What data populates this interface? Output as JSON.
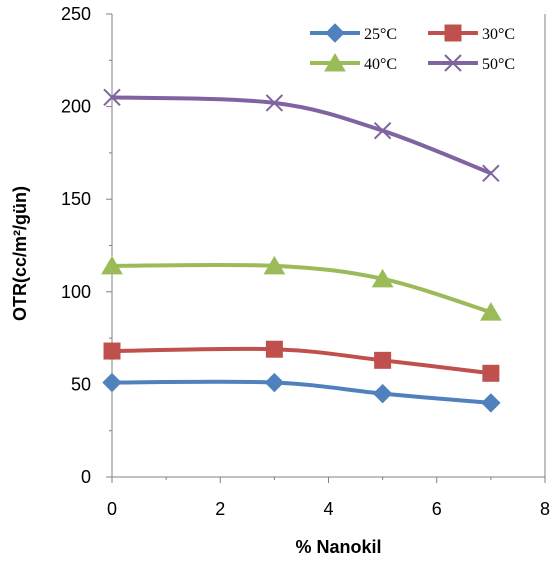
{
  "chart_data": {
    "type": "line",
    "title": "",
    "xlabel": "% Nanokil",
    "ylabel": "OTR(cc/m²/gün)",
    "xlim": [
      0,
      8
    ],
    "ylim": [
      0,
      250
    ],
    "x_ticks": [
      0,
      2,
      4,
      6,
      8
    ],
    "y_ticks": [
      0,
      50,
      100,
      150,
      200,
      250
    ],
    "grid": false,
    "legend_position": "top-right",
    "x": [
      0,
      3,
      5,
      7
    ],
    "series": [
      {
        "name": "25°C",
        "values": [
          51,
          51,
          45,
          40
        ],
        "color": "#4F81BD",
        "marker": "diamond"
      },
      {
        "name": "30°C",
        "values": [
          68,
          69,
          63,
          56
        ],
        "color": "#C0504D",
        "marker": "square"
      },
      {
        "name": "40°C",
        "values": [
          114,
          114,
          107,
          89
        ],
        "color": "#9BBB59",
        "marker": "triangle"
      },
      {
        "name": "50°C",
        "values": [
          205,
          202,
          187,
          164
        ],
        "color": "#8064A2",
        "marker": "x"
      }
    ]
  }
}
